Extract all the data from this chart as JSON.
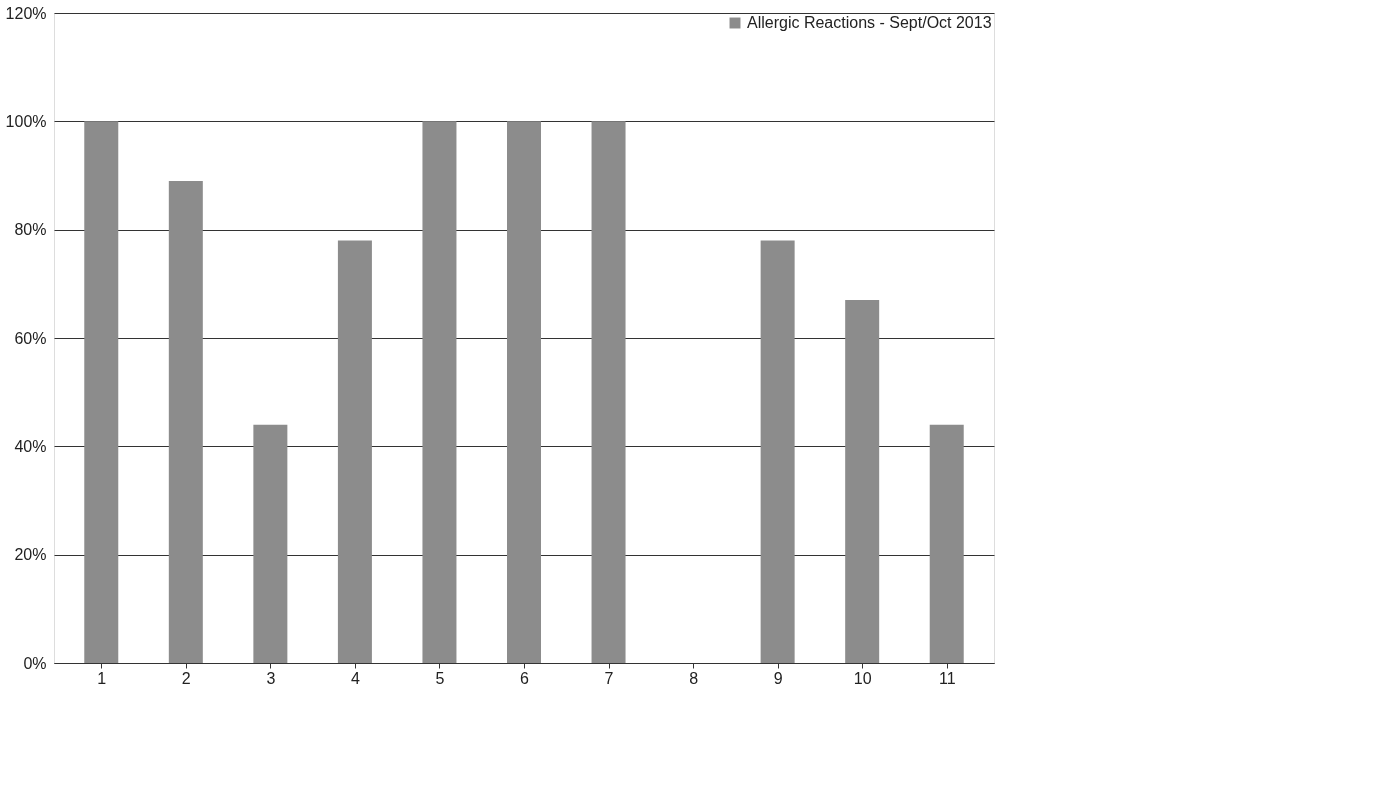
{
  "chart_data": {
    "type": "bar",
    "categories": [
      "1",
      "2",
      "3",
      "4",
      "5",
      "6",
      "7",
      "8",
      "9",
      "10",
      "11"
    ],
    "series": [
      {
        "name": "Allergic Reactions - Sept/Oct 2013",
        "color": "#8c8c8c",
        "values": [
          100,
          89,
          44,
          78,
          100,
          100,
          100,
          0,
          78,
          67,
          44
        ]
      }
    ],
    "ylim": [
      0,
      120
    ],
    "yticks": [
      {
        "value": 0,
        "label": "0%"
      },
      {
        "value": 20,
        "label": "20%"
      },
      {
        "value": 40,
        "label": "40%"
      },
      {
        "value": 60,
        "label": "60%"
      },
      {
        "value": 80,
        "label": "80%"
      },
      {
        "value": 100,
        "label": "100%"
      },
      {
        "value": 120,
        "label": "120%"
      }
    ],
    "grid": "y",
    "legend": "top right"
  }
}
